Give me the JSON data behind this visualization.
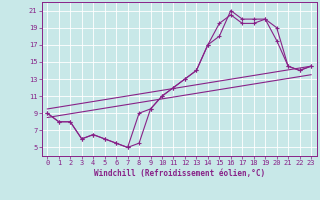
{
  "xlabel": "Windchill (Refroidissement éolien,°C)",
  "bg_color": "#c8e8e8",
  "grid_color": "#ffffff",
  "line_color": "#882288",
  "xlim": [
    -0.5,
    23.5
  ],
  "ylim": [
    4,
    22
  ],
  "xticks": [
    0,
    1,
    2,
    3,
    4,
    5,
    6,
    7,
    8,
    9,
    10,
    11,
    12,
    13,
    14,
    15,
    16,
    17,
    18,
    19,
    20,
    21,
    22,
    23
  ],
  "yticks": [
    5,
    7,
    9,
    11,
    13,
    15,
    17,
    19,
    21
  ],
  "line1_x": [
    0,
    1,
    2,
    3,
    4,
    5,
    6,
    7,
    8,
    9,
    10,
    11,
    12,
    13,
    14,
    15,
    16,
    17,
    18,
    19,
    20,
    21,
    22,
    23
  ],
  "line1_y": [
    9,
    8,
    8,
    6,
    6.5,
    6,
    5.5,
    5,
    5.5,
    9.5,
    11,
    12,
    13,
    14,
    17,
    18,
    21,
    20,
    20,
    20,
    19,
    14.5,
    14,
    14.5
  ],
  "line2_x": [
    0,
    1,
    2,
    3,
    4,
    5,
    6,
    7,
    8,
    9,
    10,
    11,
    12,
    13,
    14,
    15,
    16,
    17,
    18,
    19,
    20,
    21,
    22,
    23
  ],
  "line2_y": [
    9,
    8,
    8,
    6,
    6.5,
    6,
    5.5,
    5,
    9,
    9.5,
    11,
    12,
    13,
    14,
    17,
    19.5,
    20.5,
    19.5,
    19.5,
    20,
    17.5,
    14.5,
    14,
    14.5
  ],
  "line3_x": [
    0,
    23
  ],
  "line3_y": [
    8.5,
    13.5
  ],
  "line4_x": [
    0,
    23
  ],
  "line4_y": [
    9.5,
    14.5
  ],
  "xlabel_fontsize": 5.5,
  "tick_fontsize": 5.0
}
